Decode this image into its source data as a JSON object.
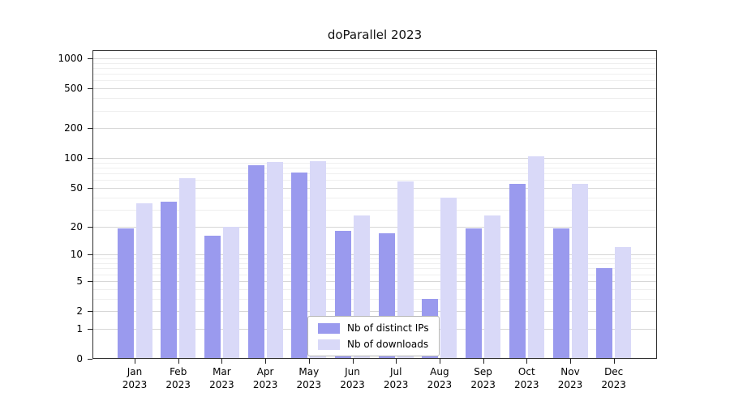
{
  "title": "doParallel 2023",
  "chart_data": {
    "type": "bar",
    "scale": "log1p",
    "title": "doParallel 2023",
    "categories": [
      "Jan 2023",
      "Feb 2023",
      "Mar 2023",
      "Apr 2023",
      "May 2023",
      "Jun 2023",
      "Jul 2023",
      "Aug 2023",
      "Sep 2023",
      "Oct 2023",
      "Nov 2023",
      "Dec 2023"
    ],
    "x_months": [
      "Jan",
      "Feb",
      "Mar",
      "Apr",
      "May",
      "Jun",
      "Jul",
      "Aug",
      "Sep",
      "Oct",
      "Nov",
      "Dec"
    ],
    "x_year": "2023",
    "series": [
      {
        "name": "Nb of distinct IPs",
        "color": "#9a9aee",
        "values": [
          19,
          36,
          16,
          85,
          72,
          18,
          17,
          3,
          19,
          55,
          19,
          7
        ]
      },
      {
        "name": "Nb of downloads",
        "color": "#d9d9f8",
        "values": [
          35,
          63,
          20,
          92,
          93,
          26,
          58,
          40,
          26,
          105,
          55,
          12
        ]
      }
    ],
    "y_ticks": [
      0,
      1,
      2,
      5,
      10,
      20,
      50,
      100,
      200,
      500,
      1000
    ],
    "ylim": [
      0,
      1000
    ],
    "grid": true,
    "legend_position": "bottom-center"
  },
  "legend": {
    "items": [
      {
        "label": "Nb of distinct IPs"
      },
      {
        "label": "Nb of downloads"
      }
    ]
  },
  "colors": {
    "ips_bar": "#9a9aee",
    "downloads_bar": "#d9d9f8",
    "grid_major": "#d7d7d7",
    "grid_minor": "#efefef",
    "axis": "#2f2f2f"
  }
}
